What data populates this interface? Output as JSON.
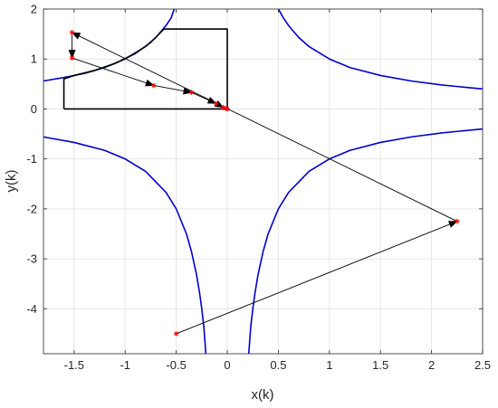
{
  "chart_data": {
    "type": "line",
    "xlabel": "x(k)",
    "ylabel": "y(k)",
    "xlim": [
      -1.8,
      2.5
    ],
    "ylim": [
      -4.9,
      2
    ],
    "xticks": [
      -1.5,
      -1,
      -0.5,
      0,
      0.5,
      1,
      1.5,
      2,
      2.5
    ],
    "yticks": [
      -4,
      -3,
      -2,
      -1,
      0,
      1,
      2
    ],
    "grid": true,
    "curve_color": "#0000cd",
    "region_color": "#000000",
    "trajectory_color": "#000000",
    "marker_color": "#ff0000",
    "curves": [
      {
        "x": [
          -1.8,
          -1.6,
          -1.4,
          -1.2,
          -1.0,
          -0.8,
          -0.7,
          -0.6,
          -0.55,
          -0.52
        ],
        "y": [
          0.56,
          0.63,
          0.71,
          0.83,
          1.0,
          1.25,
          1.43,
          1.67,
          1.82,
          2.0
        ]
      },
      {
        "x": [
          0.5,
          0.55,
          0.6,
          0.7,
          0.8,
          1.0,
          1.2,
          1.5,
          1.8,
          2.1,
          2.5
        ],
        "y": [
          2.0,
          1.82,
          1.67,
          1.43,
          1.25,
          1.0,
          0.83,
          0.67,
          0.56,
          0.48,
          0.4
        ]
      },
      {
        "x": [
          -1.8,
          -1.5,
          -1.2,
          -1.0,
          -0.8,
          -0.6,
          -0.5,
          -0.4,
          -0.35,
          -0.3,
          -0.27,
          -0.25,
          -0.23,
          -0.21
        ],
        "y": [
          -0.56,
          -0.67,
          -0.83,
          -1.0,
          -1.25,
          -1.67,
          -2.0,
          -2.5,
          -2.86,
          -3.33,
          -3.7,
          -4.0,
          -4.35,
          -4.9
        ]
      },
      {
        "x": [
          0.21,
          0.23,
          0.25,
          0.27,
          0.3,
          0.35,
          0.4,
          0.5,
          0.6,
          0.8,
          1.0,
          1.2,
          1.5,
          1.8,
          2.1,
          2.5
        ],
        "y": [
          -4.9,
          -4.35,
          -4.0,
          -3.7,
          -3.33,
          -2.86,
          -2.5,
          -2.0,
          -1.67,
          -1.25,
          -1.0,
          -0.83,
          -0.67,
          -0.56,
          -0.48,
          -0.4
        ]
      }
    ],
    "region": {
      "x": [
        -1.6,
        -1.6,
        -1.5,
        -1.3,
        -1.1,
        -0.9,
        -0.75,
        -0.62,
        -0.625,
        0,
        0,
        -1.6
      ],
      "y": [
        0,
        0.6,
        0.67,
        0.77,
        0.91,
        1.11,
        1.33,
        1.6,
        1.6,
        1.6,
        0,
        0
      ]
    },
    "trajectory": [
      {
        "x": -0.5,
        "y": -4.5
      },
      {
        "x": 2.25,
        "y": -2.25
      },
      {
        "x": -1.52,
        "y": 1.53
      },
      {
        "x": -1.52,
        "y": 1.02
      },
      {
        "x": -0.72,
        "y": 0.47
      },
      {
        "x": -0.35,
        "y": 0.33
      },
      {
        "x": -0.11,
        "y": 0.11
      },
      {
        "x": -0.04,
        "y": 0.03
      },
      {
        "x": -0.01,
        "y": 0.01
      },
      {
        "x": 0,
        "y": 0
      }
    ]
  }
}
